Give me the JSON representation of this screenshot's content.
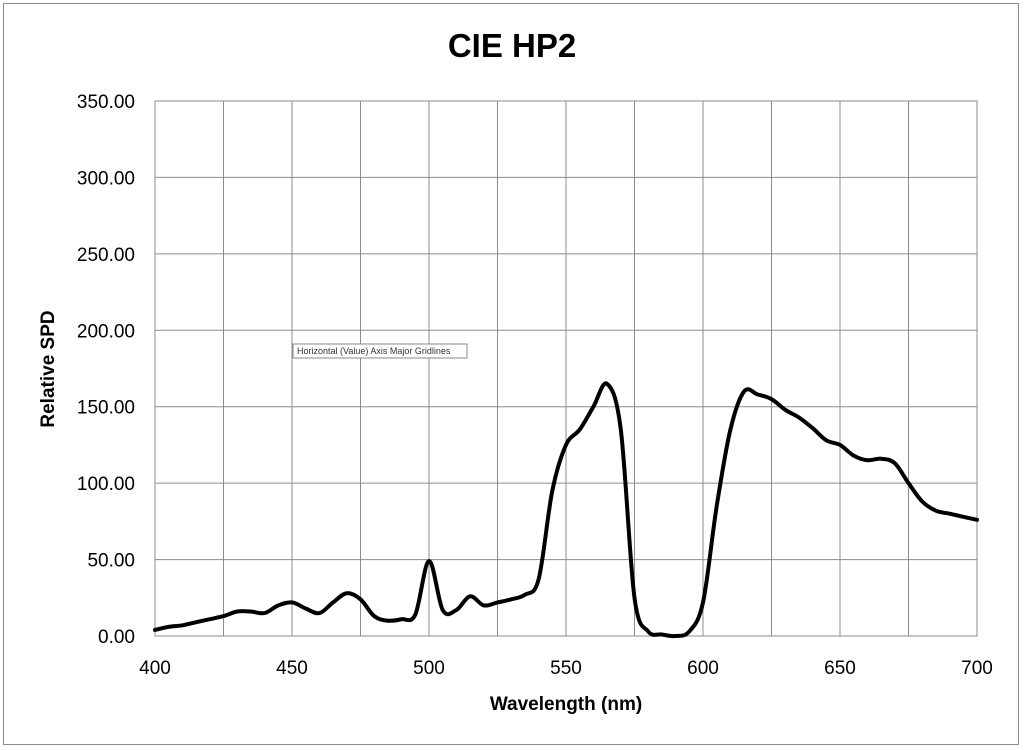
{
  "chart_data": {
    "type": "line",
    "title": "CIE HP2",
    "xlabel": "Wavelength (nm)",
    "ylabel": "Relative SPD",
    "xlim": [
      400,
      700
    ],
    "ylim": [
      0,
      350
    ],
    "x_ticks": [
      400,
      450,
      500,
      550,
      600,
      650,
      700
    ],
    "x_tick_labels": [
      "400",
      "450",
      "500",
      "550",
      "600",
      "650",
      "700"
    ],
    "x_minor_gridlines": [
      425,
      475,
      525,
      575,
      625,
      675
    ],
    "y_ticks": [
      0,
      50,
      100,
      150,
      200,
      250,
      300,
      350
    ],
    "y_tick_labels": [
      "0.00",
      "50.00",
      "100.00",
      "150.00",
      "200.00",
      "250.00",
      "300.00",
      "350.00"
    ],
    "grid": true,
    "legend": "none",
    "series": [
      {
        "color": "#000000",
        "x": [
          400,
          405,
          410,
          415,
          420,
          425,
          430,
          435,
          440,
          445,
          450,
          455,
          460,
          465,
          470,
          475,
          480,
          485,
          490,
          495,
          500,
          505,
          510,
          515,
          520,
          525,
          530,
          535,
          540,
          545,
          550,
          555,
          560,
          565,
          570,
          575,
          580,
          585,
          590,
          595,
          600,
          605,
          610,
          615,
          620,
          625,
          630,
          635,
          640,
          645,
          650,
          655,
          660,
          665,
          670,
          675,
          680,
          685,
          690,
          695,
          700
        ],
        "values": [
          4,
          6,
          7,
          9,
          11,
          13,
          16,
          16,
          15,
          20,
          22,
          18,
          15,
          22,
          28,
          24,
          13,
          10,
          11,
          14,
          49,
          17,
          17,
          26,
          20,
          22,
          24,
          27,
          37,
          95,
          125,
          135,
          150,
          165,
          135,
          25,
          3,
          1,
          0,
          3,
          22,
          85,
          135,
          160,
          158,
          155,
          148,
          143,
          136,
          128,
          125,
          118,
          115,
          116,
          113,
          100,
          88,
          82,
          80,
          78,
          76
        ]
      }
    ],
    "tooltip": "Horizontal (Value) Axis Major Gridlines"
  }
}
